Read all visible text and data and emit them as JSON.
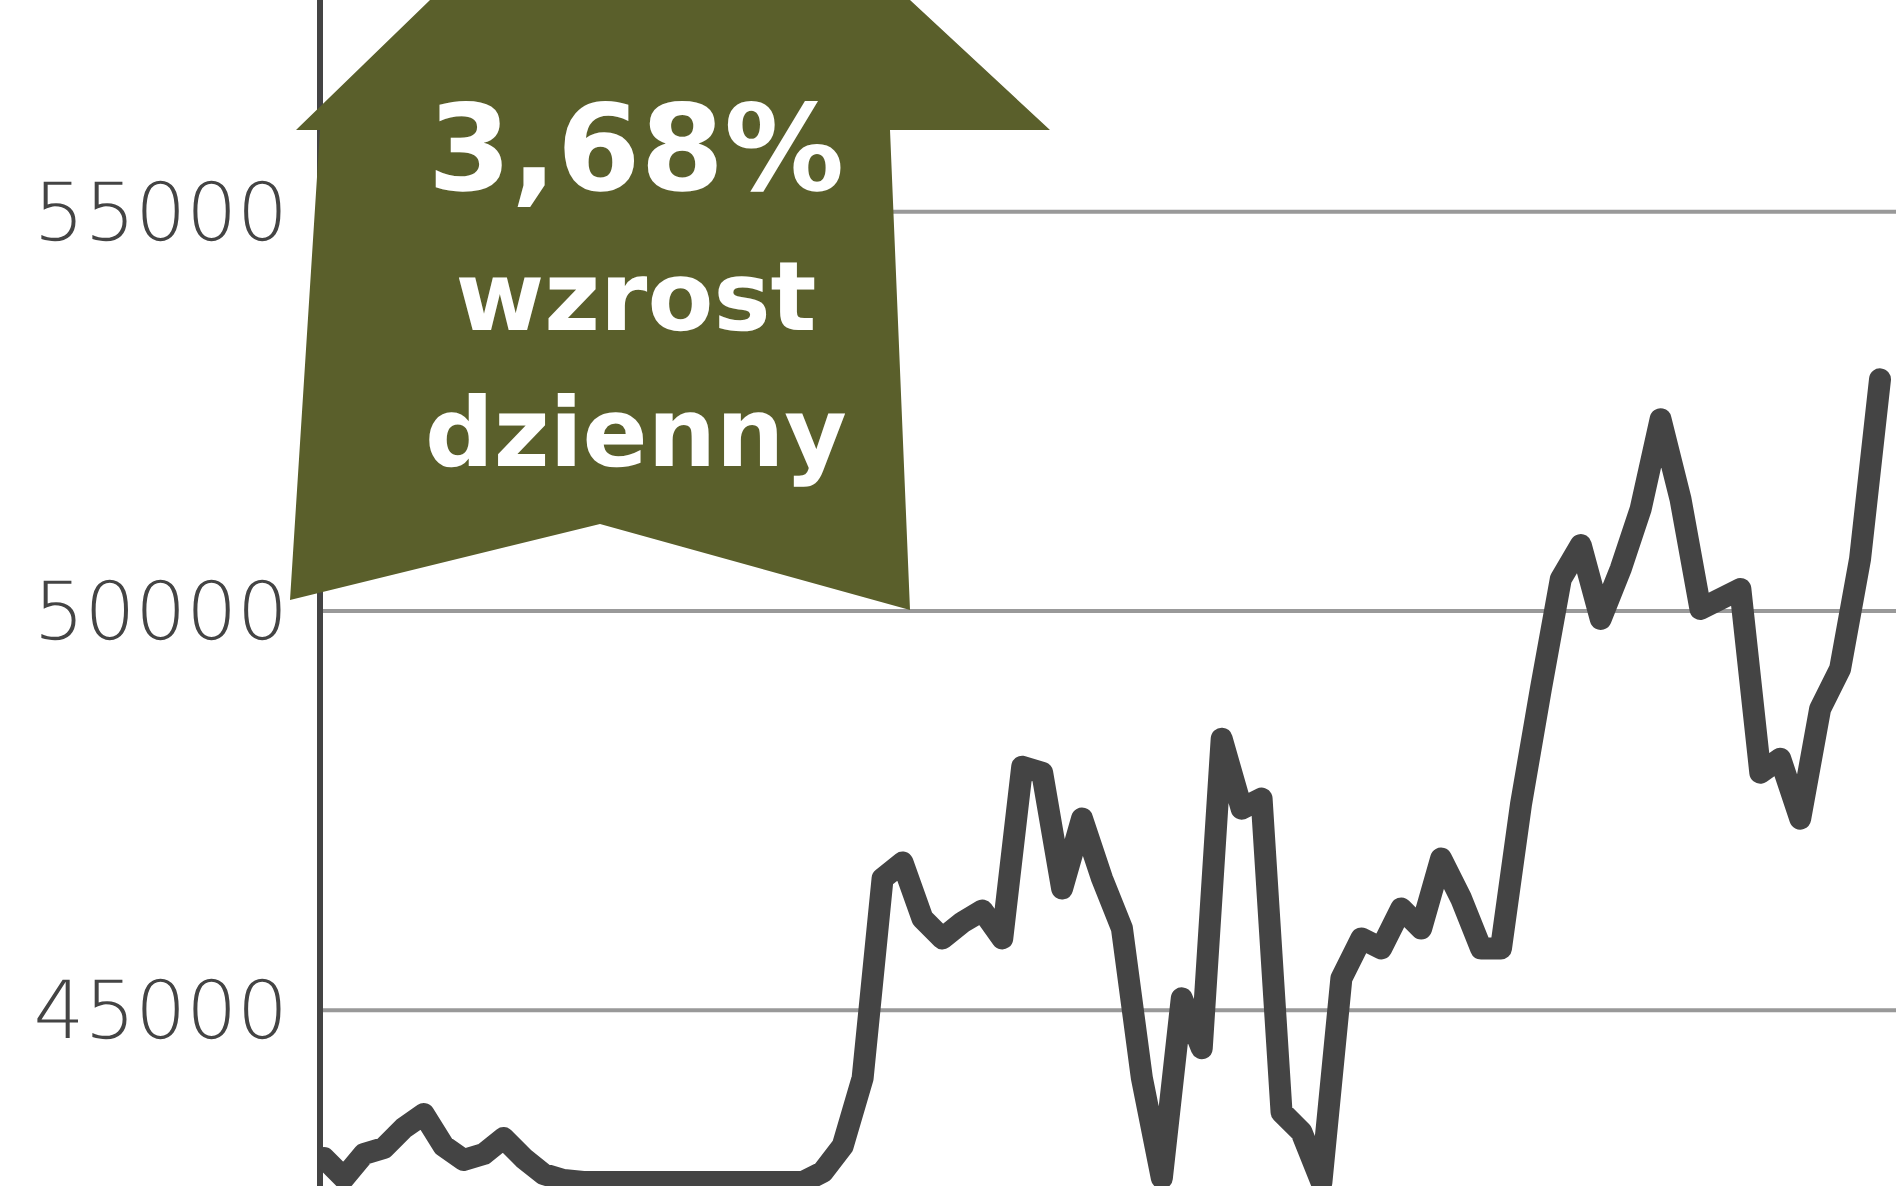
{
  "chart_data": {
    "type": "line",
    "annotations": [
      "3,68%",
      "wzrost",
      "dzienny"
    ],
    "categories": [
      null,
      null,
      null,
      null,
      null,
      null,
      null,
      null,
      null,
      null,
      null,
      null,
      null,
      null,
      null,
      null,
      null,
      null,
      null,
      null,
      null,
      null,
      null,
      null,
      null,
      null,
      null,
      null,
      null,
      null,
      null,
      null,
      null,
      null,
      null,
      null,
      null,
      null,
      null,
      null,
      null,
      null,
      null,
      null,
      null,
      null,
      null,
      null,
      null,
      null,
      null,
      null,
      null,
      null,
      null,
      null,
      null,
      null,
      null,
      null,
      null,
      null,
      null,
      null,
      null,
      null,
      null,
      null,
      null,
      null,
      null,
      null,
      null,
      null,
      null,
      null,
      null,
      null,
      null
    ],
    "series": [
      {
        "color": "#444444",
        "values": [
          43150,
          42900,
          43200,
          43275,
          43525,
          43700,
          43300,
          43125,
          43200,
          43400,
          43150,
          42950,
          42875,
          42850,
          42850,
          42850,
          42850,
          42850,
          42850,
          42850,
          42850,
          42850,
          42850,
          42850,
          42850,
          42975,
          43300,
          44150,
          46650,
          46850,
          46150,
          45900,
          46100,
          46250,
          45900,
          48050,
          47975,
          46525,
          47400,
          46650,
          46025,
          44150,
          42900,
          45150,
          44525,
          48400,
          47525,
          47650,
          43725,
          43475,
          42850,
          45400,
          45900,
          45775,
          46275,
          46025,
          46900,
          46400,
          45775,
          45775,
          47575,
          49025,
          50400,
          50825,
          49900,
          50525,
          51275,
          52400,
          51400,
          50025,
          50150,
          50275,
          47975,
          48150,
          47400,
          48775,
          49275,
          50650,
          52900
        ]
      }
    ],
    "ylim": [
      42800,
      57650
    ],
    "yticks": [
      45000,
      50000,
      55000
    ],
    "grid": "y"
  }
}
